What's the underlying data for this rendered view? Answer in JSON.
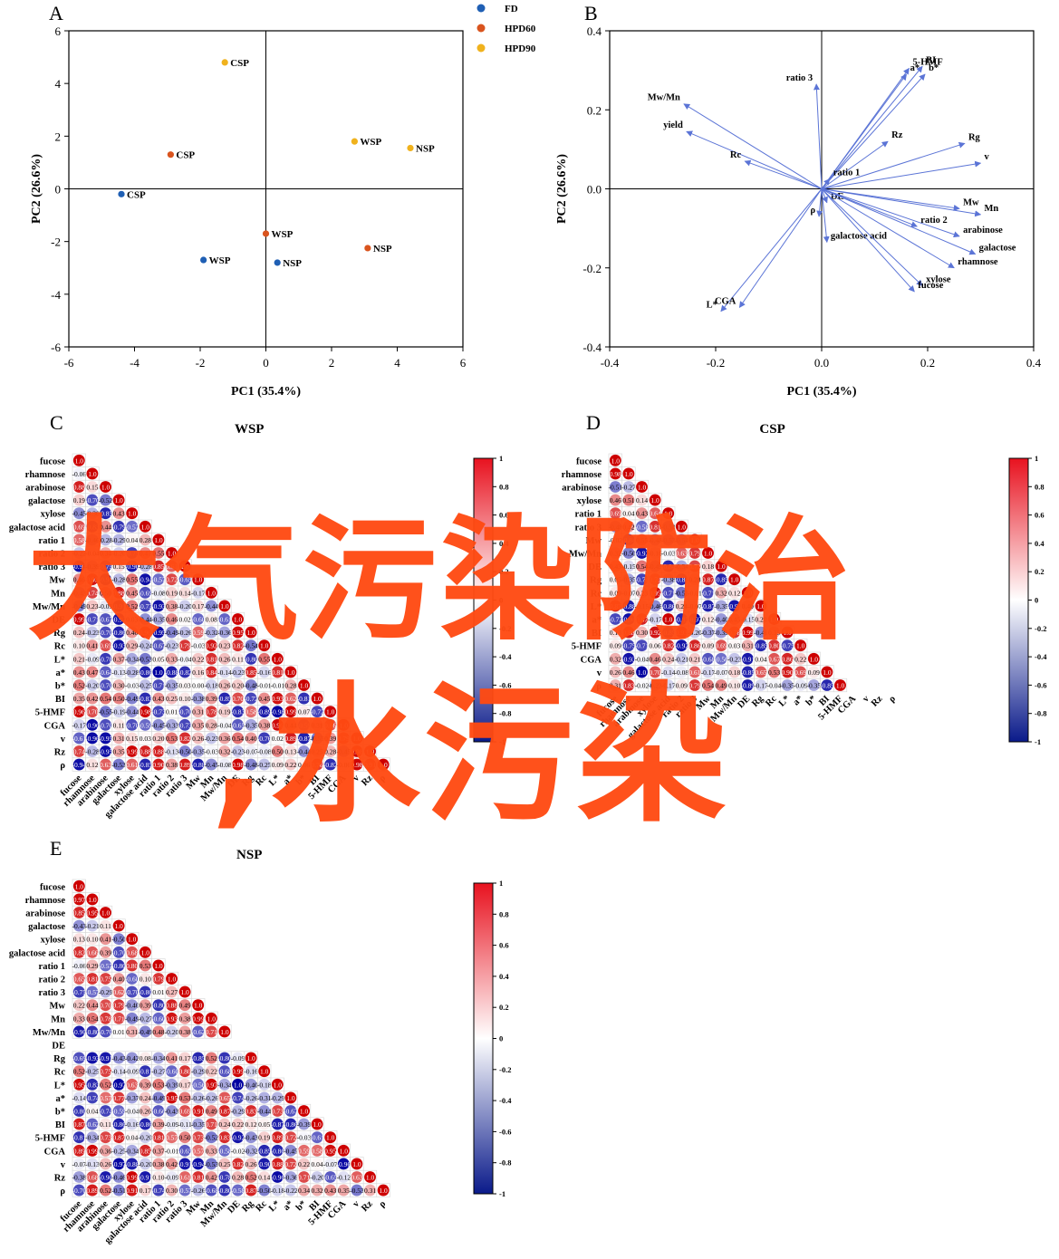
{
  "chart_data": [
    {
      "id": "A",
      "type": "scatter",
      "panel_label": "A",
      "xlabel": "PC1 (35.4%)",
      "ylabel": "PC2 (26.6%)",
      "xlim": [
        -6,
        6
      ],
      "ylim": [
        -6,
        6
      ],
      "xticks": [
        -6,
        -4,
        -2,
        0,
        2,
        4,
        6
      ],
      "yticks": [
        -6,
        -4,
        -2,
        0,
        2,
        4,
        6
      ],
      "legend_position": "top-center",
      "grid": false,
      "series": [
        {
          "name": "FD",
          "color": "#1f5fb4",
          "points": [
            {
              "x": -4.4,
              "y": -0.2,
              "label": "CSP"
            },
            {
              "x": -1.9,
              "y": -2.7,
              "label": "WSP"
            },
            {
              "x": 0.35,
              "y": -2.8,
              "label": "NSP"
            }
          ]
        },
        {
          "name": "HPD60",
          "color": "#d9541e",
          "points": [
            {
              "x": -2.9,
              "y": 1.3,
              "label": "CSP"
            },
            {
              "x": 0.0,
              "y": -1.7,
              "label": "WSP"
            },
            {
              "x": 3.1,
              "y": -2.25,
              "label": "NSP"
            }
          ]
        },
        {
          "name": "HPD90",
          "color": "#f0b21d",
          "points": [
            {
              "x": -1.25,
              "y": 4.8,
              "label": "CSP"
            },
            {
              "x": 2.7,
              "y": 1.8,
              "label": "WSP"
            },
            {
              "x": 4.4,
              "y": 1.55,
              "label": "NSP"
            }
          ]
        }
      ]
    },
    {
      "id": "B",
      "type": "scatter",
      "panel_label": "B",
      "xlabel": "PC1 (35.4%)",
      "ylabel": "PC2 (26.6%)",
      "xlim": [
        -0.4,
        0.4
      ],
      "ylim": [
        -0.4,
        0.4
      ],
      "xticks": [
        -0.4,
        -0.2,
        0.0,
        0.2,
        0.4
      ],
      "yticks": [
        -0.4,
        -0.2,
        0.0,
        0.2,
        0.4
      ],
      "xtick_labels": [
        "-0.4",
        "-0.2",
        "0.0",
        "0.2",
        "0.4"
      ],
      "ytick_labels": [
        "-0.4",
        "-0.2",
        "0.0",
        "0.2",
        "0.4"
      ],
      "arrow_color": "#5b74d6",
      "loadings": [
        {
          "name": "5-HMF",
          "x": 0.165,
          "y": 0.305
        },
        {
          "name": "BI",
          "x": 0.19,
          "y": 0.31
        },
        {
          "name": "a*",
          "x": 0.16,
          "y": 0.29
        },
        {
          "name": "b*",
          "x": 0.195,
          "y": 0.29
        },
        {
          "name": "ratio 3",
          "x": -0.01,
          "y": 0.265
        },
        {
          "name": "Mw/Mn",
          "x": -0.26,
          "y": 0.215
        },
        {
          "name": "yield",
          "x": -0.255,
          "y": 0.145
        },
        {
          "name": "Rc",
          "x": -0.145,
          "y": 0.07
        },
        {
          "name": "Rz",
          "x": 0.125,
          "y": 0.12
        },
        {
          "name": "Rg",
          "x": 0.27,
          "y": 0.115
        },
        {
          "name": "v",
          "x": 0.3,
          "y": 0.065
        },
        {
          "name": "ratio 1",
          "x": 0.015,
          "y": 0.025
        },
        {
          "name": "DE",
          "x": 0.01,
          "y": -0.035
        },
        {
          "name": "ρ",
          "x": -0.005,
          "y": -0.07
        },
        {
          "name": "Mw",
          "x": 0.26,
          "y": -0.05
        },
        {
          "name": "Mn",
          "x": 0.3,
          "y": -0.065
        },
        {
          "name": "ratio 2",
          "x": 0.18,
          "y": -0.095
        },
        {
          "name": "arabinose",
          "x": 0.26,
          "y": -0.12
        },
        {
          "name": "galactose",
          "x": 0.29,
          "y": -0.165
        },
        {
          "name": "rhamnose",
          "x": 0.25,
          "y": -0.2
        },
        {
          "name": "galactose acid",
          "x": 0.01,
          "y": -0.135
        },
        {
          "name": "xylose",
          "x": 0.19,
          "y": -0.245
        },
        {
          "name": "fucose",
          "x": 0.175,
          "y": -0.26
        },
        {
          "name": "L*",
          "x": -0.19,
          "y": -0.31
        },
        {
          "name": "CGA",
          "x": -0.155,
          "y": -0.3
        }
      ]
    },
    {
      "id": "C",
      "type": "heatmap",
      "panel_label": "C",
      "title": "WSP",
      "variables": [
        "fucose",
        "rhamnose",
        "arabinose",
        "galactose",
        "xylose",
        "galactose acid",
        "ratio 1",
        "ratio 2",
        "ratio 3",
        "Mw",
        "Mn",
        "Mw/Mn",
        "DE",
        "Rg",
        "Rc",
        "L*",
        "a*",
        "b*",
        "BI",
        "5-HMF",
        "CGA",
        "v",
        "Rz",
        "ρ"
      ],
      "row_labels": [
        "fucose",
        "rhamnose",
        "arabinose",
        "galactose",
        "xylose",
        "galactose acid",
        "ratio 1",
        "ratio 2",
        "ratio 3",
        "Mw",
        "Mn",
        "Mw/Mn",
        "DE",
        "Rg",
        "Rc",
        "L*",
        "a*",
        "b*",
        "BI",
        "5-HMF",
        "CGA",
        "v",
        "Rz",
        "ρ"
      ],
      "col_labels": [
        "fucose",
        "rhamnose",
        "arabinose",
        "galactose",
        "xylose",
        "galactose acid",
        "ratio 1",
        "ratio 2",
        "ratio 3",
        "Mw",
        "Mn",
        "Mw/Mn",
        "DE",
        "Rg",
        "Rc",
        "L*",
        "a*",
        "b*",
        "BI",
        "5-HMF",
        "CGA",
        "v",
        "Rz",
        "ρ"
      ],
      "colorbar_ticks": [
        "1",
        "0.8",
        "0.6",
        "0.4",
        "0.2",
        "0",
        "-0.2",
        "-0.4",
        "-0.6",
        "-0.8",
        "-1"
      ],
      "seed": 11,
      "partial_rows": {
        "1": [
          -0.055
        ],
        "2": [
          0.88,
          0.15
        ],
        "3": [
          0.19,
          -0.7
        ]
      }
    },
    {
      "id": "D",
      "type": "heatmap",
      "panel_label": "D",
      "title": "CSP",
      "variables": [
        "fucose",
        "rhamnose",
        "arabinose",
        "galactose",
        "xylose",
        "galactose acid",
        "ratio 1",
        "ratio 2",
        "ratio 3",
        "Mw",
        "Mn",
        "Mw/Mn",
        "DE",
        "Rg",
        "Rc",
        "L*",
        "a*",
        "b*",
        "BI",
        "5-HMF",
        "CGA",
        "v",
        "Rz",
        "ρ"
      ],
      "row_labels": [
        "fucose",
        "rhamnose",
        "arabinose",
        "xylose",
        "ratio 1",
        "ratio 3",
        "Mw",
        "Mw/Mn",
        "DE",
        "Rg",
        "Rc",
        "L*",
        "a*",
        "BI",
        "5-HMF",
        "CGA",
        "v",
        "ρ"
      ],
      "col_labels": [
        "fucose",
        "rhamnose",
        "arabinose",
        "xylose",
        "galactose acid",
        "ratio 2",
        "ratio 3",
        "Mw",
        "Mn",
        "Mw/Mn",
        "DE",
        "Rg",
        "Rc",
        "L*",
        "a*",
        "b*",
        "BI",
        "5-HMF",
        "CGA",
        "v",
        "Rz",
        "ρ"
      ],
      "colorbar_ticks": [
        "1",
        "0.8",
        "0.6",
        "0.4",
        "0.2",
        "0",
        "-0.2",
        "-0.4",
        "-0.6",
        "-0.8",
        "-1"
      ],
      "seed": 23,
      "partial_rows": {
        "1": [
          0.98
        ],
        "3": [
          0.46,
          0.51
        ],
        "4": [
          0.69
        ]
      }
    },
    {
      "id": "E",
      "type": "heatmap",
      "panel_label": "E",
      "title": "NSP",
      "variables": [
        "fucose",
        "rhamnose",
        "arabinose",
        "galactose",
        "xylose",
        "galactose acid",
        "ratio 1",
        "ratio 2",
        "ratio 3",
        "Mw",
        "Mn",
        "Mw/Mn",
        "DE",
        "Rg",
        "Rc",
        "L*",
        "a*",
        "b*",
        "BI",
        "5-HMF",
        "CGA",
        "v",
        "Rz",
        "ρ"
      ],
      "row_labels": [
        "fucose",
        "rhamnose",
        "arabinose",
        "galactose",
        "xylose",
        "galactose acid",
        "ratio 1",
        "ratio 2",
        "ratio 3",
        "Mw",
        "Mn",
        "Mw/Mn",
        "DE",
        "Rg",
        "Rc",
        "L*",
        "a*",
        "b*",
        "BI",
        "5-HMF",
        "CGA",
        "v",
        "Rz",
        "ρ"
      ],
      "col_labels": [
        "fucose",
        "rhamnose",
        "arabinose",
        "galactose",
        "xylose",
        "galactose acid",
        "ratio 1",
        "ratio 2",
        "ratio 3",
        "Mw",
        "Mn",
        "Mw/Mn",
        "DE",
        "Rg",
        "Rc",
        "L*",
        "a*",
        "b*",
        "BI",
        "5-HMF",
        "CGA",
        "v",
        "Rz",
        "ρ"
      ],
      "colorbar_ticks": [
        "1",
        "0.8",
        "0.6",
        "0.4",
        "0.2",
        "0",
        "-0.2",
        "-0.4",
        "-0.6",
        "-0.8",
        "-1"
      ],
      "seed": 37,
      "empty_rows": [
        12
      ],
      "partial_rows": {
        "1": [
          0.97
        ],
        "2": [
          0.85,
          0.95
        ],
        "3": [
          -0.43,
          -0.21,
          0.11
        ],
        "4": [
          0.13,
          0.099,
          0.41
        ],
        "5": [
          0.82,
          0.66,
          0.39,
          -0.7,
          0.68
        ],
        "6": [
          -0.058,
          0.29,
          -0.57,
          -0.8,
          0.8,
          0.53
        ],
        "7": [
          0.65,
          0.81,
          0.75,
          0.4,
          -0.6,
          0.099,
          0.79
        ],
        "8": [
          -0.75,
          -0.57,
          -0.29,
          0.62,
          -0.7,
          -0.8,
          0.015
        ],
        "9": [
          0.22,
          0.44,
          0.7,
          0.79,
          -0.4,
          0.39,
          -0.8,
          0.88,
          0.49
        ],
        "10": [
          0.33,
          0.54,
          0.78,
          0.71,
          -0.49,
          -0.27,
          -0.6,
          0.93,
          0.38,
          0.99
        ],
        "11": [
          -0.9,
          -0.8,
          -0.7,
          0.008,
          0.31,
          -0.49,
          0.48,
          -0.2,
          0.38,
          -0.62,
          0.71
        ]
      }
    }
  ],
  "watermark": {
    "line1": "大气污染防治",
    "line2": ",水污染"
  }
}
